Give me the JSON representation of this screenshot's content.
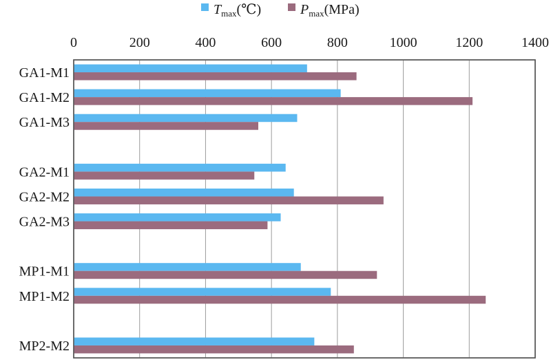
{
  "chart_data": {
    "type": "bar",
    "orientation": "horizontal",
    "categories": [
      "GA1-M1",
      "GA1-M2",
      "GA1-M3",
      "",
      "GA2-M1",
      "GA2-M2",
      "GA2-M3",
      "",
      "MP1-M1",
      "MP1-M2",
      "",
      "MP2-M2"
    ],
    "series": [
      {
        "name_symbol": "T",
        "name_sub": "max",
        "name_unit": "(℃)",
        "color": "#5bb8f0",
        "values": [
          708,
          810,
          678,
          null,
          643,
          668,
          628,
          null,
          689,
          780,
          null,
          730
        ]
      },
      {
        "name_symbol": "P",
        "name_sub": "max",
        "name_unit": "(MPa)",
        "color": "#9b6b7e",
        "values": [
          858,
          1210,
          560,
          null,
          548,
          940,
          588,
          null,
          920,
          1250,
          null,
          850
        ]
      }
    ],
    "xlim": [
      0,
      1400
    ],
    "xticks": [
      "0",
      "200",
      "400",
      "600",
      "800",
      "1000",
      "1200",
      "1400"
    ],
    "grid": "vertical",
    "axis_position": "top",
    "legend_position": "top"
  }
}
